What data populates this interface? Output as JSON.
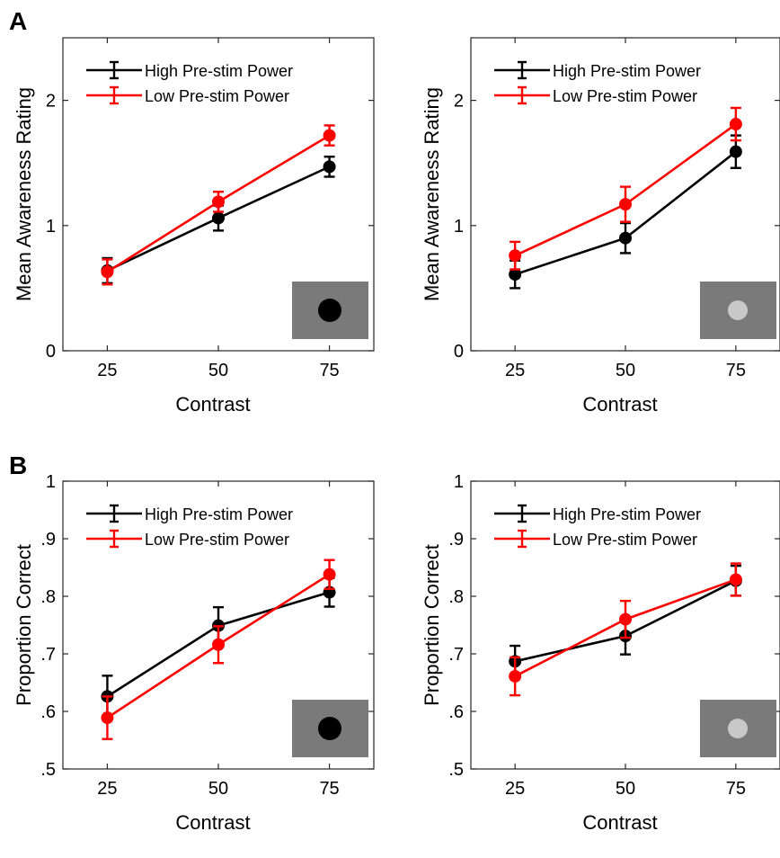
{
  "figure": {
    "panel_labels": [
      "A",
      "B"
    ]
  },
  "colors": {
    "high": "#000000",
    "low": "#ff0000",
    "stim_background": "#7a7a7a",
    "stim_dark": "#000000",
    "stim_light": "#c8c8c8"
  },
  "chart_data": [
    {
      "type": "line",
      "panel": "A",
      "xlabel": "Contrast",
      "ylabel": "Mean Awareness Rating",
      "xlim": [
        15,
        85
      ],
      "ylim": [
        0,
        2.5
      ],
      "xticks": [
        25,
        50,
        75
      ],
      "xtick_labels": [
        "25",
        "50",
        "75"
      ],
      "yticks": [
        0,
        1,
        2
      ],
      "ytick_labels": [
        "0",
        "1",
        "2"
      ],
      "grid": false,
      "legend_position": "top-left",
      "stimulus": "dark",
      "x": [
        25,
        50,
        75
      ],
      "series": [
        {
          "name": "High Pre-stim Power",
          "color_key": "high",
          "values": [
            0.64,
            1.06,
            1.47
          ],
          "errors": [
            0.1,
            0.1,
            0.08
          ]
        },
        {
          "name": "Low Pre-stim Power",
          "color_key": "low",
          "values": [
            0.63,
            1.19,
            1.72
          ],
          "errors": [
            0.1,
            0.08,
            0.08
          ]
        }
      ]
    },
    {
      "type": "line",
      "panel": "",
      "xlabel": "Contrast",
      "ylabel": "Mean Awareness Rating",
      "xlim": [
        15,
        85
      ],
      "ylim": [
        0,
        2.5
      ],
      "xticks": [
        25,
        50,
        75
      ],
      "xtick_labels": [
        "25",
        "50",
        "75"
      ],
      "yticks": [
        0,
        1,
        2
      ],
      "ytick_labels": [
        "0",
        "1",
        "2"
      ],
      "grid": false,
      "legend_position": "top-left",
      "stimulus": "light",
      "x": [
        25,
        50,
        75
      ],
      "series": [
        {
          "name": "High Pre-stim Power",
          "color_key": "high",
          "values": [
            0.61,
            0.9,
            1.59
          ],
          "errors": [
            0.11,
            0.12,
            0.13
          ]
        },
        {
          "name": "Low Pre-stim Power",
          "color_key": "low",
          "values": [
            0.76,
            1.17,
            1.81
          ],
          "errors": [
            0.11,
            0.14,
            0.13
          ]
        }
      ]
    },
    {
      "type": "line",
      "panel": "B",
      "xlabel": "Contrast",
      "ylabel": "Proportion Correct",
      "xlim": [
        15,
        85
      ],
      "ylim": [
        0.5,
        1.0
      ],
      "xticks": [
        25,
        50,
        75
      ],
      "xtick_labels": [
        "25",
        "50",
        "75"
      ],
      "yticks": [
        0.5,
        0.6,
        0.7,
        0.8,
        0.9,
        1.0
      ],
      "ytick_labels": [
        ".5",
        ".6",
        ".7",
        ".8",
        ".9",
        "1"
      ],
      "grid": false,
      "legend_position": "top-left",
      "stimulus": "dark",
      "x": [
        25,
        50,
        75
      ],
      "series": [
        {
          "name": "High Pre-stim Power",
          "color_key": "high",
          "values": [
            0.626,
            0.749,
            0.807
          ],
          "errors": [
            0.036,
            0.032,
            0.025
          ]
        },
        {
          "name": "Low Pre-stim Power",
          "color_key": "low",
          "values": [
            0.589,
            0.716,
            0.838
          ],
          "errors": [
            0.037,
            0.032,
            0.025
          ]
        }
      ]
    },
    {
      "type": "line",
      "panel": "",
      "xlabel": "Contrast",
      "ylabel": "Proportion Correct",
      "xlim": [
        15,
        85
      ],
      "ylim": [
        0.5,
        1.0
      ],
      "xticks": [
        25,
        50,
        75
      ],
      "xtick_labels": [
        "25",
        "50",
        "75"
      ],
      "yticks": [
        0.5,
        0.6,
        0.7,
        0.8,
        0.9,
        1.0
      ],
      "ytick_labels": [
        ".5",
        ".6",
        ".7",
        ".8",
        ".9",
        "1"
      ],
      "grid": false,
      "legend_position": "top-left",
      "stimulus": "light",
      "x": [
        25,
        50,
        75
      ],
      "series": [
        {
          "name": "High Pre-stim Power",
          "color_key": "high",
          "values": [
            0.687,
            0.731,
            0.827
          ],
          "errors": [
            0.027,
            0.032,
            0.026
          ]
        },
        {
          "name": "Low Pre-stim Power",
          "color_key": "low",
          "values": [
            0.661,
            0.76,
            0.829
          ],
          "errors": [
            0.033,
            0.032,
            0.028
          ]
        }
      ]
    }
  ]
}
